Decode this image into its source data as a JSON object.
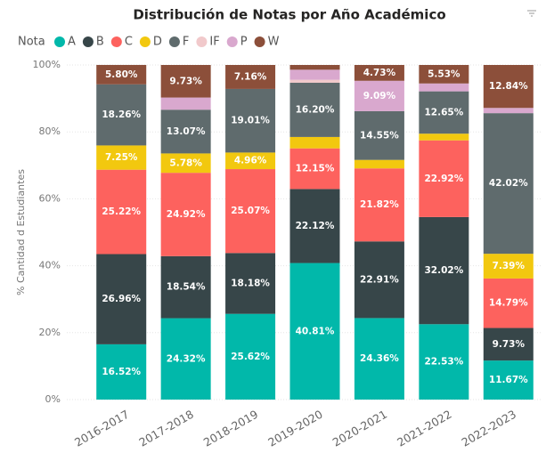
{
  "chart_data": {
    "type": "stacked_percent_bar",
    "title": "Distribución de Notas por Año Académico",
    "legend_title": "Nota",
    "y_label": "% Cantidad d Estudiantes",
    "categories": [
      "2016-2017",
      "2017-2018",
      "2018-2019",
      "2019-2020",
      "2020-2021",
      "2021-2022",
      "2022-2023"
    ],
    "ylim": [
      0,
      100
    ],
    "yticks": [
      {
        "value": 0,
        "label": "0%"
      },
      {
        "value": 20,
        "label": "20%"
      },
      {
        "value": 40,
        "label": "40%"
      },
      {
        "value": 60,
        "label": "60%"
      },
      {
        "value": 80,
        "label": "80%"
      },
      {
        "value": 100,
        "label": "100%"
      }
    ],
    "grid": true,
    "legend_position": "top-left",
    "series": [
      {
        "name": "A",
        "color": "#01B8AA",
        "values": [
          16.52,
          24.32,
          25.62,
          40.81,
          24.36,
          22.53,
          11.67
        ],
        "value_labels": [
          "16.52%",
          "24.32%",
          "25.62%",
          "40.81%",
          "24.36%",
          "22.53%",
          "11.67%"
        ]
      },
      {
        "name": "B",
        "color": "#374649",
        "values": [
          26.96,
          18.54,
          18.18,
          22.12,
          22.91,
          32.02,
          9.73
        ],
        "value_labels": [
          "26.96%",
          "18.54%",
          "18.18%",
          "22.12%",
          "22.91%",
          "32.02%",
          "9.73%"
        ]
      },
      {
        "name": "C",
        "color": "#FD625E",
        "values": [
          25.22,
          24.92,
          25.07,
          12.15,
          21.82,
          22.92,
          14.79
        ],
        "value_labels": [
          "25.22%",
          "24.92%",
          "25.07%",
          "12.15%",
          "21.82%",
          "22.92%",
          "14.79%"
        ]
      },
      {
        "name": "D",
        "color": "#F2C80F",
        "values": [
          7.25,
          5.78,
          4.96,
          3.4,
          2.54,
          2.0,
          7.39
        ],
        "value_labels": [
          "7.25%",
          "5.78%",
          "4.96%",
          null,
          null,
          null,
          "7.39%"
        ]
      },
      {
        "name": "F",
        "color": "#5F6B6D",
        "values": [
          18.26,
          13.07,
          19.01,
          16.2,
          14.55,
          12.65,
          42.02
        ],
        "value_labels": [
          "18.26%",
          "13.07%",
          "19.01%",
          "16.20%",
          "14.55%",
          "12.65%",
          "42.02%"
        ]
      },
      {
        "name": "IF",
        "color": "#F1C9CB",
        "values": [
          0,
          0,
          0,
          0.9,
          0,
          0,
          0
        ],
        "value_labels": [
          null,
          null,
          null,
          null,
          null,
          null,
          null
        ]
      },
      {
        "name": "P",
        "color": "#D9A8CE",
        "values": [
          0,
          3.64,
          0,
          3.0,
          9.09,
          2.35,
          1.56
        ],
        "value_labels": [
          null,
          null,
          null,
          null,
          "9.09%",
          null,
          null
        ]
      },
      {
        "name": "W",
        "color": "#8C4F3A",
        "values": [
          5.8,
          9.73,
          7.16,
          1.42,
          4.73,
          5.53,
          12.84
        ],
        "value_labels": [
          "5.80%",
          "9.73%",
          "7.16%",
          null,
          "4.73%",
          "5.53%",
          "12.84%"
        ]
      }
    ]
  }
}
